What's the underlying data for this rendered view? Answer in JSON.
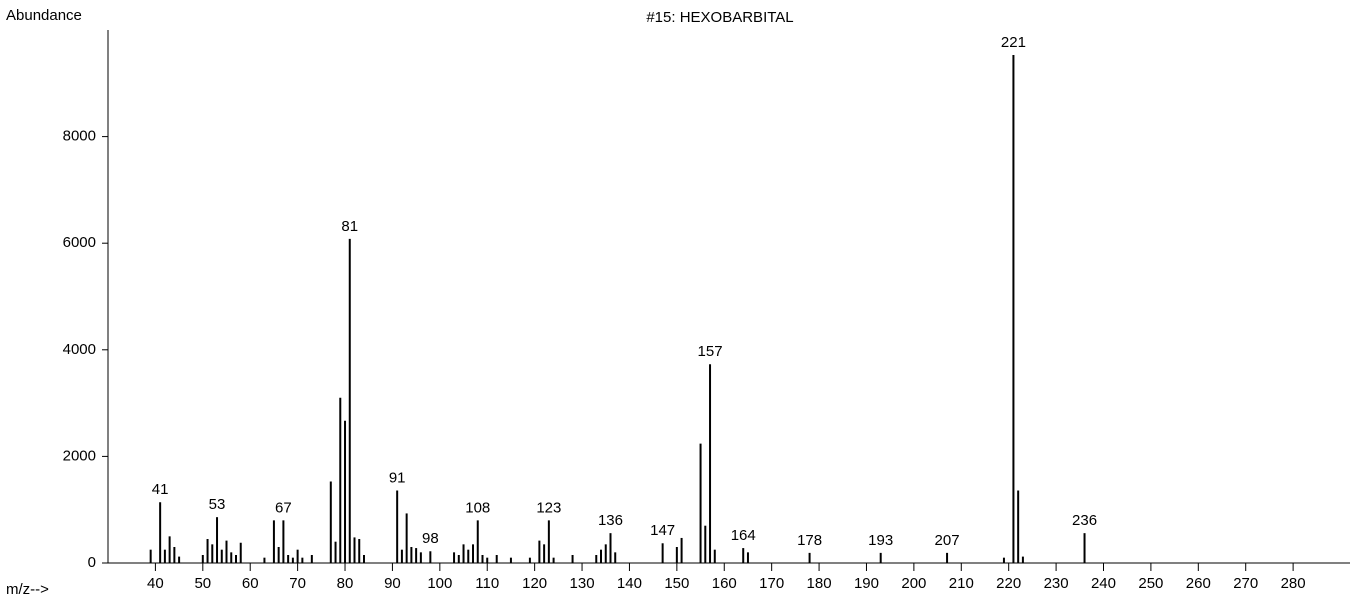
{
  "chart_data": {
    "type": "bar",
    "title": "#15: HEXOBARBITAL",
    "y_label": "Abundance",
    "x_label": "m/z-->",
    "x": [
      39,
      41,
      42,
      43,
      44,
      45,
      50,
      51,
      52,
      53,
      54,
      55,
      56,
      57,
      58,
      63,
      65,
      66,
      67,
      68,
      69,
      70,
      71,
      73,
      77,
      78,
      79,
      80,
      81,
      82,
      83,
      84,
      91,
      92,
      93,
      94,
      95,
      96,
      98,
      103,
      104,
      105,
      106,
      107,
      108,
      109,
      110,
      112,
      115,
      119,
      121,
      122,
      123,
      124,
      128,
      133,
      134,
      135,
      136,
      137,
      147,
      150,
      151,
      155,
      156,
      157,
      158,
      164,
      165,
      178,
      193,
      207,
      219,
      221,
      222,
      223,
      236
    ],
    "values": [
      250,
      1140,
      250,
      500,
      300,
      120,
      150,
      450,
      350,
      860,
      250,
      420,
      200,
      150,
      380,
      100,
      800,
      300,
      800,
      150,
      100,
      250,
      100,
      150,
      1530,
      400,
      3100,
      2670,
      6080,
      480,
      450,
      150,
      1360,
      250,
      930,
      300,
      280,
      200,
      220,
      200,
      150,
      350,
      250,
      350,
      800,
      150,
      100,
      150,
      100,
      100,
      420,
      350,
      800,
      100,
      150,
      150,
      250,
      350,
      560,
      200,
      370,
      300,
      470,
      2240,
      700,
      3730,
      250,
      280,
      200,
      190,
      190,
      190,
      100,
      9530,
      1360,
      120,
      560
    ],
    "peak_labels": [
      41,
      53,
      67,
      81,
      91,
      98,
      108,
      123,
      136,
      147,
      157,
      164,
      178,
      193,
      207,
      221,
      236
    ],
    "color": "#000000",
    "xlim": [
      30,
      292
    ],
    "xticks": [
      40,
      50,
      60,
      70,
      80,
      90,
      100,
      110,
      120,
      130,
      140,
      150,
      160,
      170,
      180,
      190,
      200,
      210,
      220,
      230,
      240,
      250,
      260,
      270,
      280
    ],
    "ylim": [
      0,
      10000
    ],
    "yticks": [
      0,
      2000,
      4000,
      6000,
      8000
    ]
  }
}
